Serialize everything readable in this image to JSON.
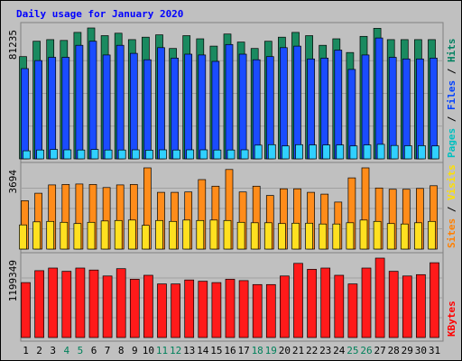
{
  "chart_data": {
    "type": "bar",
    "title": "Daily usage for January 2020",
    "categories": [
      "1",
      "2",
      "3",
      "4",
      "5",
      "6",
      "7",
      "8",
      "9",
      "10",
      "11",
      "12",
      "13",
      "14",
      "15",
      "16",
      "17",
      "18",
      "19",
      "20",
      "21",
      "22",
      "23",
      "24",
      "25",
      "26",
      "27",
      "28",
      "29",
      "30",
      "31"
    ],
    "weekend_days": [
      "4",
      "5",
      "11",
      "12",
      "18",
      "19",
      "25",
      "26"
    ],
    "panels": [
      {
        "id": "hits",
        "ymax_label": "81235",
        "ymax": 81235,
        "right_label": [
          {
            "text": "Pages",
            "color": "#00c0c0"
          },
          {
            "text": " / ",
            "color": "#000000"
          },
          {
            "text": "Files",
            "color": "#0040ff"
          },
          {
            "text": " / ",
            "color": "#000000"
          },
          {
            "text": "Hits",
            "color": "#008060"
          }
        ],
        "series": [
          {
            "name": "Hits",
            "color": "#1a8a60",
            "values": [
              63500,
              73000,
              74000,
              73500,
              78500,
              81235,
              76500,
              78000,
              74000,
              75500,
              77000,
              68500,
              76500,
              74500,
              70000,
              77500,
              72500,
              68500,
              73000,
              75500,
              78500,
              76500,
              70500,
              74500,
              66000,
              76000,
              81000,
              74000,
              74000,
              74000,
              74000
            ]
          },
          {
            "name": "Files",
            "color": "#1a4cff",
            "values": [
              56000,
              61000,
              63000,
              63000,
              70500,
              73000,
              64500,
              70500,
              65500,
              61500,
              69000,
              62500,
              65000,
              64500,
              60500,
              71000,
              65000,
              61500,
              63500,
              69000,
              70000,
              62000,
              62500,
              67500,
              55500,
              64500,
              75000,
              63000,
              62000,
              62000,
              62500
            ]
          },
          {
            "name": "Pages",
            "color": "#30d0ff",
            "values": [
              5000,
              5500,
              5800,
              5600,
              5500,
              5800,
              5500,
              5500,
              5600,
              5400,
              5600,
              5500,
              5600,
              5600,
              5500,
              5500,
              5600,
              8500,
              8800,
              8000,
              8800,
              8600,
              8600,
              8600,
              8000,
              8600,
              9000,
              8300,
              8100,
              8200,
              8000
            ]
          }
        ]
      },
      {
        "id": "visits",
        "ymax_label": "3694",
        "ymax": 3694,
        "right_label": [
          {
            "text": "Sites",
            "color": "#ff8000"
          },
          {
            "text": " / ",
            "color": "#000000"
          },
          {
            "text": "Visits",
            "color": "#ffe000"
          }
        ],
        "series": [
          {
            "name": "Visits",
            "color": "#ff8c1a",
            "values": [
              2200,
              2540,
              2920,
              2940,
              2960,
              2940,
              2800,
              2920,
              2940,
              3694,
              2580,
              2580,
              2600,
              3160,
              2860,
              3620,
              2600,
              2860,
              2440,
              2740,
              2740,
              2580,
              2500,
              2140,
              3240,
              3694,
              2780,
              2720,
              2720,
              2760,
              2880
            ]
          },
          {
            "name": "Sites",
            "color": "#ffe020",
            "values": [
              1100,
              1240,
              1260,
              1220,
              1160,
              1220,
              1280,
              1300,
              1320,
              1080,
              1300,
              1260,
              1320,
              1300,
              1320,
              1300,
              1220,
              1200,
              1200,
              1160,
              1180,
              1180,
              1140,
              1140,
              1200,
              1320,
              1260,
              1160,
              1140,
              1200,
              1260
            ]
          }
        ]
      },
      {
        "id": "kbytes",
        "ymax_label": "1199349",
        "ymax": 1199349,
        "right_label": [
          {
            "text": "KBytes",
            "color": "#ff0000"
          }
        ],
        "series": [
          {
            "name": "KBytes",
            "color": "#ff1a1a",
            "values": [
              830000,
              1010000,
              1050000,
              1000000,
              1050000,
              1020000,
              930000,
              1040000,
              880000,
              940000,
              810000,
              810000,
              870000,
              850000,
              830000,
              880000,
              860000,
              800000,
              800000,
              930000,
              1120000,
              1030000,
              1050000,
              940000,
              810000,
              1050000,
              1199349,
              1000000,
              930000,
              950000,
              1130000
            ]
          }
        ]
      }
    ]
  }
}
